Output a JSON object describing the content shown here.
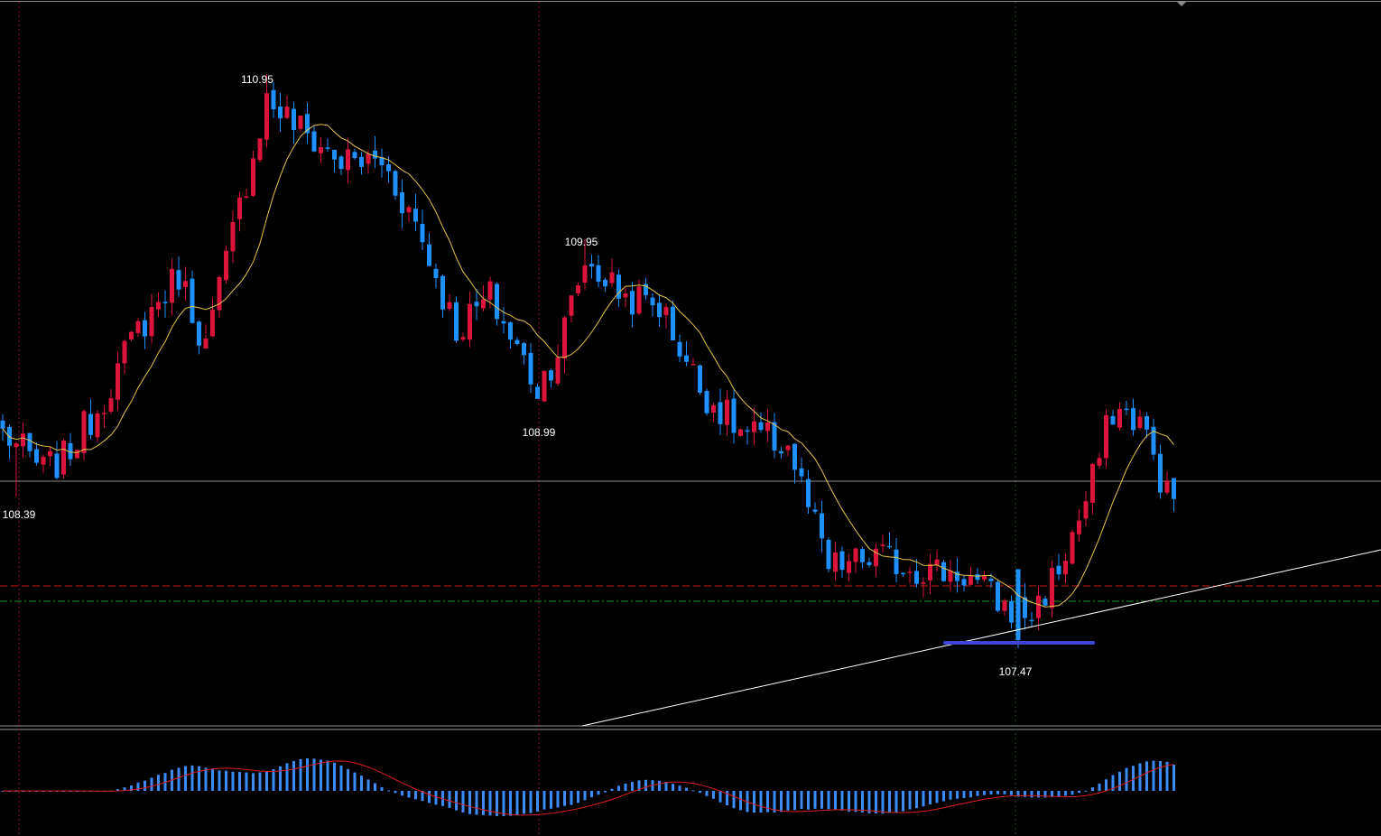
{
  "chart_data": {
    "type": "candlestick",
    "title": "",
    "xlabel": "",
    "ylabel": "",
    "colors": {
      "background": "#000000",
      "up_candle": "#dc143c",
      "down_candle": "#1e90ff",
      "moving_average": "#e6c44a",
      "trendline": "#ffffff",
      "support_marker": "#3c46d2",
      "macd_histogram": "#3c8cf5",
      "macd_signal": "#dc1e1e",
      "red_dashed_level": "#c81e1e",
      "green_dashdot_level": "#289628",
      "vertical_red_dotted": "#8c1e28",
      "vertical_green_dotted": "#1e501e",
      "horizontal_level": "#8c8c8c"
    },
    "annotations": [
      {
        "text": "110.95",
        "kind": "high"
      },
      {
        "text": "109.95",
        "kind": "high"
      },
      {
        "text": "108.99",
        "kind": "low"
      },
      {
        "text": "108.39",
        "kind": "low"
      },
      {
        "text": "107.47",
        "kind": "low"
      }
    ],
    "ohlc_ylim": [
      107.0,
      111.4
    ],
    "series": [
      {
        "name": "",
        "values": []
      }
    ]
  }
}
